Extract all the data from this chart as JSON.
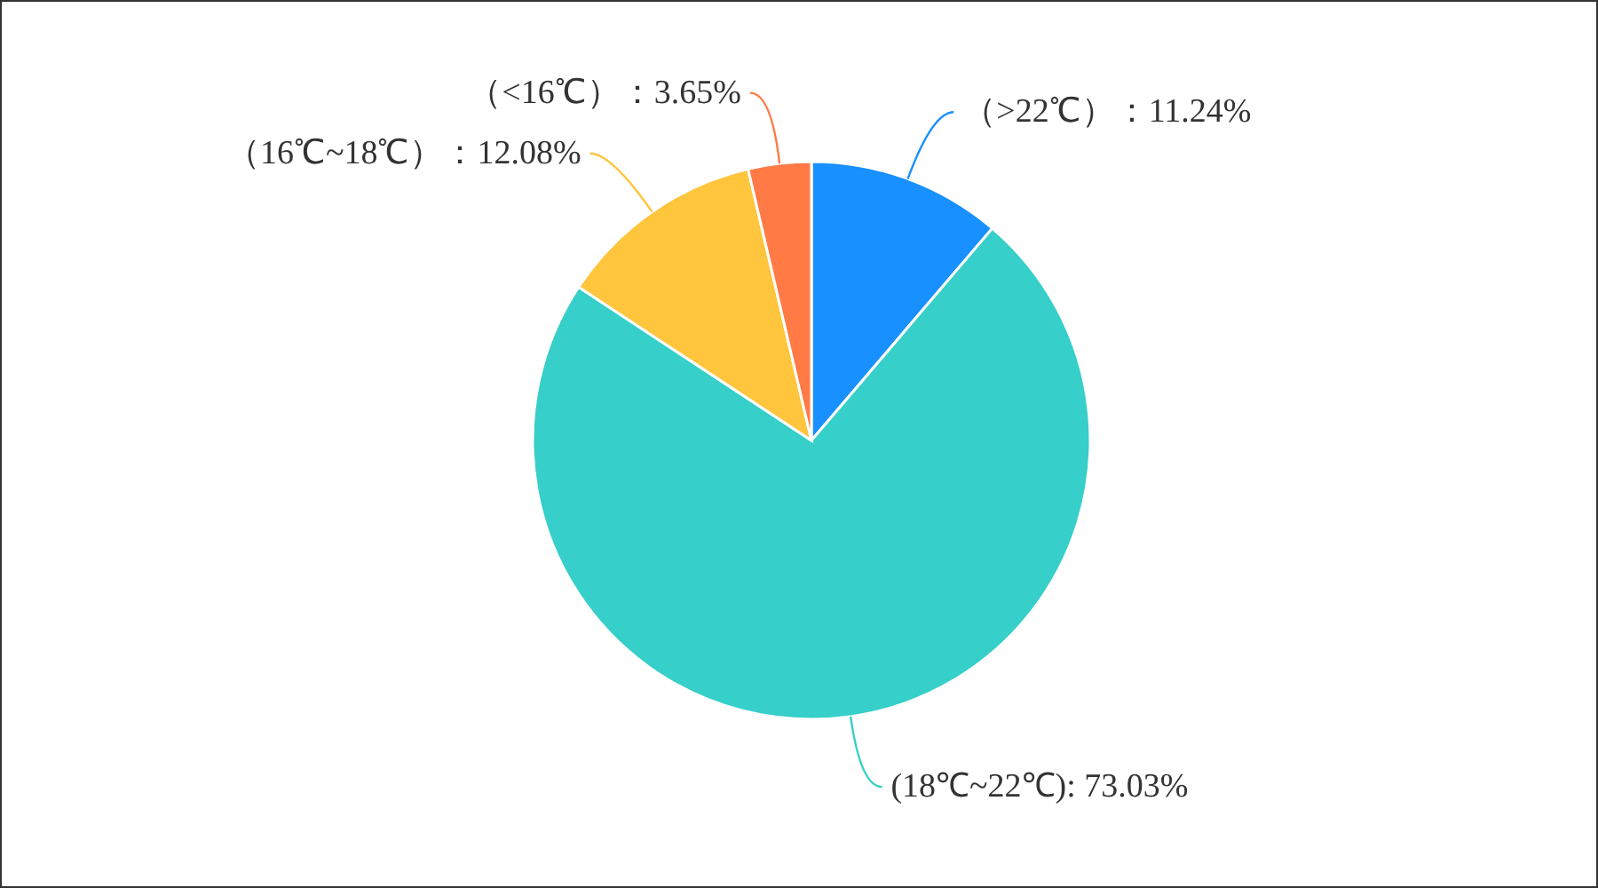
{
  "chart_data": {
    "type": "pie",
    "categories": [
      "（>22℃）",
      "(18℃~22℃)",
      "（16℃~18℃）",
      "（<16℃）"
    ],
    "values": [
      11.24,
      73.03,
      12.08,
      3.65
    ],
    "value_labels": [
      "：11.24%",
      ": 73.03%",
      "：12.08%",
      "：3.65%"
    ],
    "colors": [
      "#1890ff",
      "#36cfc9",
      "#ffc53d",
      "#ff7a45"
    ]
  }
}
